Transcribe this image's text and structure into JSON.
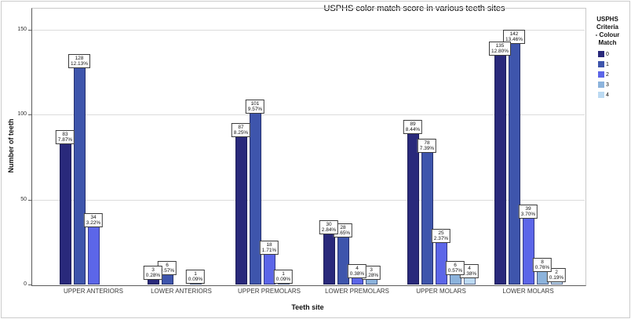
{
  "title": "USPHS color match score in various teeth sites",
  "axes": {
    "x_title": "Teeth site",
    "y_title": "Number of teeth",
    "y_ticks": [
      0,
      50,
      100,
      150
    ]
  },
  "legend": {
    "title_lines": [
      "USPHS",
      "Criteria",
      "- Colour",
      "Match"
    ],
    "entries": [
      {
        "label": "0",
        "color": "#29297B"
      },
      {
        "label": "1",
        "color": "#3E55AC"
      },
      {
        "label": "2",
        "color": "#5C66E8"
      },
      {
        "label": "3",
        "color": "#8CB3DC"
      },
      {
        "label": "4",
        "color": "#BCDAF2"
      }
    ]
  },
  "chart_data": {
    "type": "bar",
    "title": "USPHS color match score in various teeth sites",
    "xlabel": "Teeth site",
    "ylabel": "Number of teeth",
    "ylim": [
      0,
      162
    ],
    "grid": "horizontal",
    "legend_position": "right",
    "legend_title": "USPHS Criteria - Colour Match",
    "categories": [
      "UPPER ANTERIORS",
      "LOWER ANTERIORS",
      "UPPER PREMOLARS",
      "LOWER PREMOLARS",
      "UPPER MOLARS",
      "LOWER MOLARS"
    ],
    "series": [
      {
        "name": "0",
        "color": "#29297B",
        "values": [
          83,
          3,
          87,
          30,
          89,
          135
        ],
        "percent_labels": [
          "7.87%",
          "0.28%",
          "8.25%",
          "2.84%",
          "8.44%",
          "12.80%"
        ]
      },
      {
        "name": "1",
        "color": "#3E55AC",
        "values": [
          128,
          6,
          101,
          28,
          78,
          142
        ],
        "percent_labels": [
          "12.13%",
          "0.57%",
          "9.57%",
          "2.65%",
          "7.39%",
          "13.46%"
        ]
      },
      {
        "name": "2",
        "color": "#5C66E8",
        "values": [
          34,
          null,
          18,
          4,
          25,
          39
        ],
        "percent_labels": [
          "3.22%",
          null,
          "1.71%",
          "0.38%",
          "2.37%",
          "3.70%"
        ]
      },
      {
        "name": "3",
        "color": "#8CB3DC",
        "values": [
          null,
          1,
          1,
          3,
          6,
          8
        ],
        "percent_labels": [
          null,
          "0.09%",
          "0.09%",
          "0.28%",
          "0.57%",
          "0.76%"
        ]
      },
      {
        "name": "4",
        "color": "#BCDAF2",
        "values": [
          null,
          null,
          null,
          null,
          4,
          2
        ],
        "percent_labels": [
          null,
          null,
          null,
          null,
          "0.38%",
          "0.19%"
        ]
      }
    ]
  }
}
